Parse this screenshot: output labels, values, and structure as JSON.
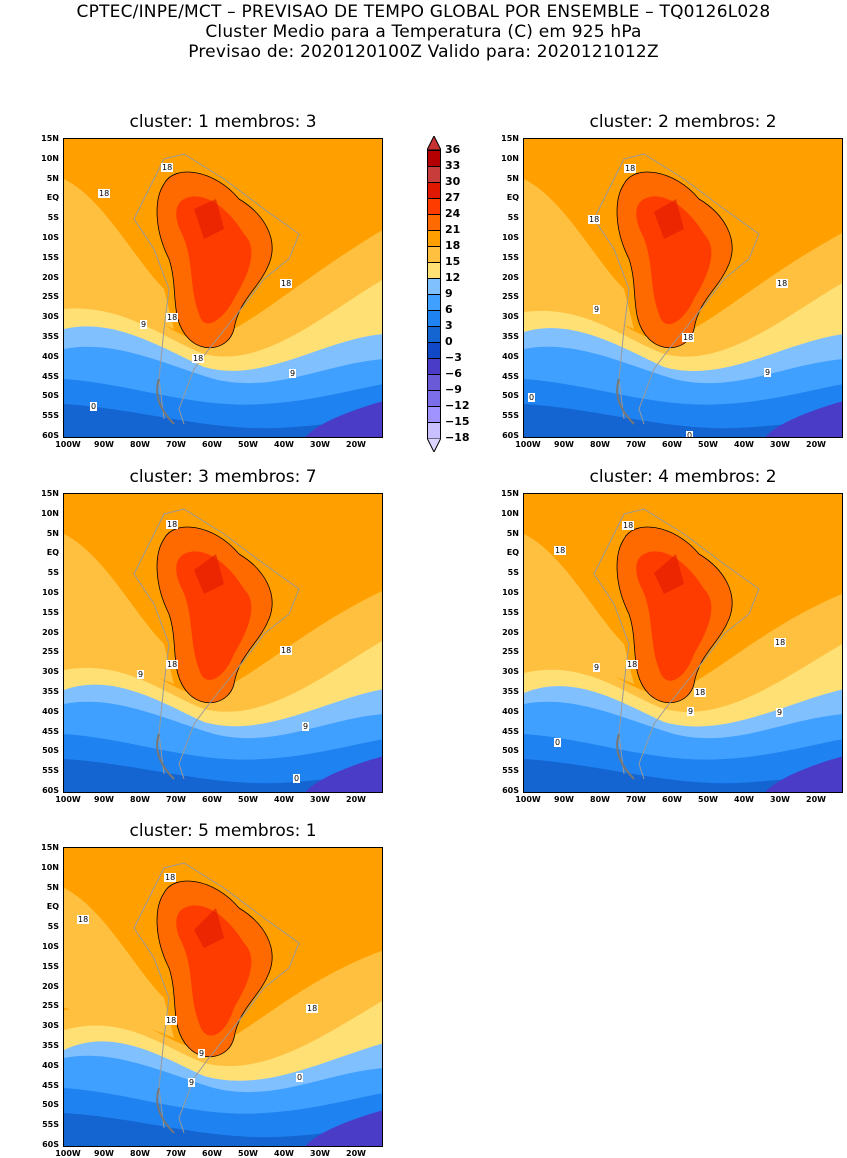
{
  "header": {
    "line1": "CPTEC/INPE/MCT – PREVISAO DE TEMPO GLOBAL POR ENSEMBLE – TQ0126L028",
    "line2": "Cluster Medio para a Temperatura (C) em 925 hPa",
    "line3": "Previsao de: 2020120100Z    Valido para: 2020121012Z"
  },
  "lat_ticks": [
    "15N",
    "10N",
    "5N",
    "EQ",
    "5S",
    "10S",
    "15S",
    "20S",
    "25S",
    "30S",
    "35S",
    "40S",
    "45S",
    "50S",
    "55S",
    "60S"
  ],
  "lon_ticks": [
    "100W",
    "90W",
    "80W",
    "70W",
    "60W",
    "50W",
    "40W",
    "30W",
    "20W"
  ],
  "panels": [
    {
      "title": "cluster: 1   membros: 3",
      "labels": [
        "18",
        "18",
        "18",
        "18",
        "18",
        "9",
        "9",
        "0"
      ]
    },
    {
      "title": "cluster: 2   membros: 2",
      "labels": [
        "18",
        "18",
        "18",
        "18",
        "9",
        "9",
        "0",
        "0"
      ]
    },
    {
      "title": "cluster: 3   membros: 7",
      "labels": [
        "18",
        "18",
        "18",
        "9",
        "9",
        "0"
      ]
    },
    {
      "title": "cluster: 4   membros: 2",
      "labels": [
        "18",
        "18",
        "18",
        "18",
        "18",
        "9",
        "9",
        "9",
        "0"
      ]
    },
    {
      "title": "cluster: 5   membros: 1",
      "labels": [
        "18",
        "18",
        "18",
        "18",
        "9",
        "9",
        "0"
      ]
    }
  ],
  "colorbar": {
    "labels": [
      "36",
      "33",
      "30",
      "27",
      "24",
      "21",
      "18",
      "15",
      "12",
      "9",
      "6",
      "3",
      "0",
      "−3",
      "−6",
      "−9",
      "−12",
      "−15",
      "−18"
    ],
    "colors": [
      "#b40000",
      "#c83c3c",
      "#e01800",
      "#ff3c00",
      "#ff6a00",
      "#ffa000",
      "#ffc040",
      "#ffe074",
      "#80c0ff",
      "#40a0ff",
      "#1e82f0",
      "#1464d2",
      "#1048c8",
      "#4b3cc8",
      "#6a5ad8",
      "#7c6ee8",
      "#a092ff",
      "#c8c0ff"
    ],
    "top_color": "#c83232",
    "bottom_color": "#dcd6ff"
  }
}
